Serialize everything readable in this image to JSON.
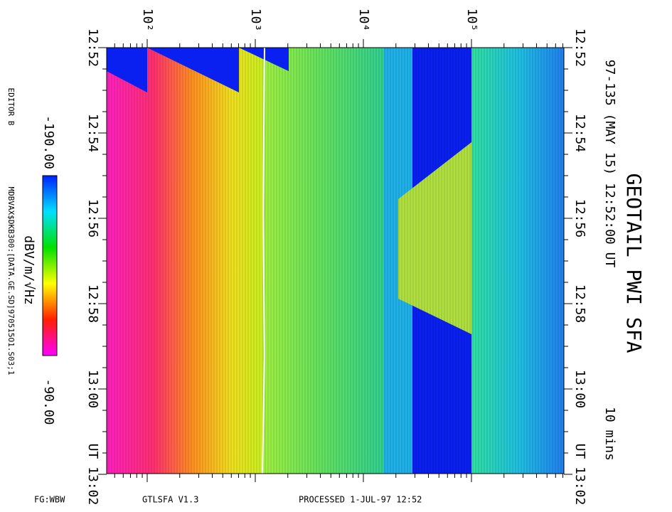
{
  "header": {
    "title": "GEOTAIL PWI SFA",
    "subtitle": "97-135 (MAY 15) 12:52:00 UT",
    "duration": "10 mins"
  },
  "frequency_axis": {
    "ticks": [
      "10²",
      "10³",
      "10⁴",
      "10⁵"
    ]
  },
  "time_axis": {
    "ticks": [
      "12:52",
      "12:54",
      "12:56",
      "12:58",
      "13:00",
      "UT 13:02"
    ]
  },
  "colorbar": {
    "top_label": "-190.00",
    "bottom_label": "-90.00",
    "unit": "dBV/m/√Hz"
  },
  "side": {
    "editor": "EDITOR B",
    "file": "MDBVAX$DKB300:[DATA.GE.SD]970515O1.S03;1"
  },
  "footer": {
    "fg": "FG:WBW",
    "program": "GTLSFA   V1.3",
    "processed": "PROCESSED   1-JUL-97   12:52"
  }
}
